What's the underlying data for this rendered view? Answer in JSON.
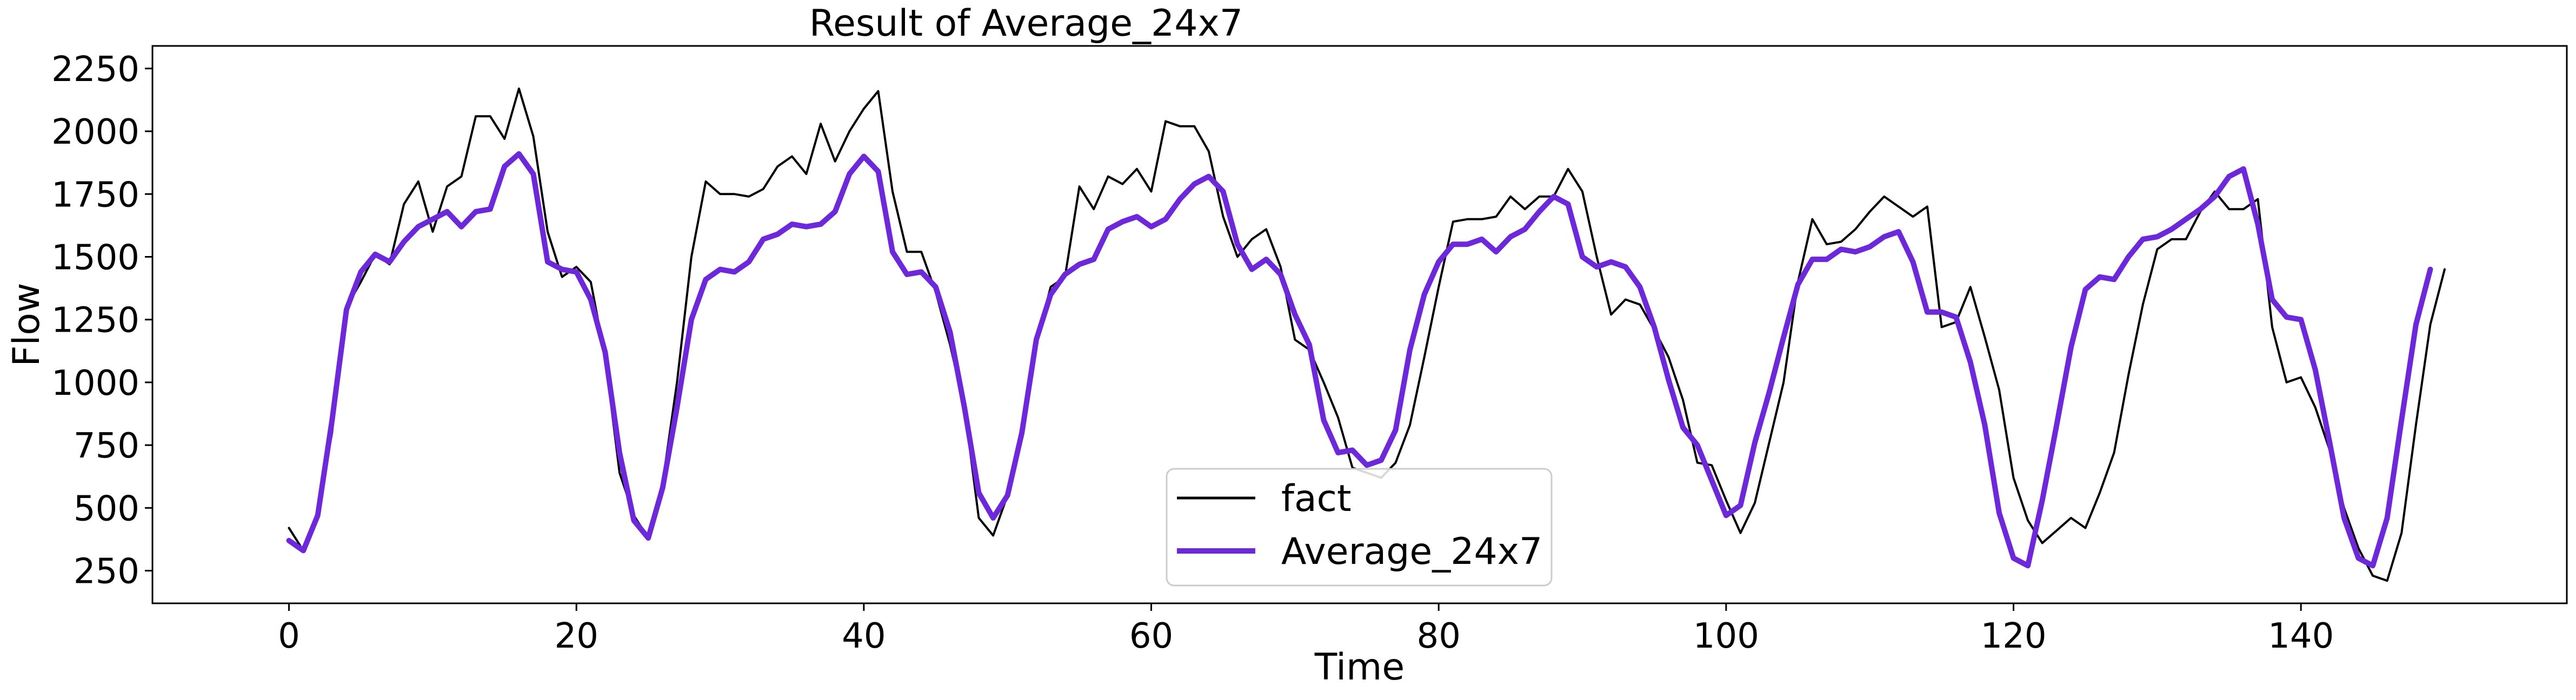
{
  "chart_data": {
    "type": "line",
    "title": "Result of Average_24x7",
    "xlabel": "Time",
    "ylabel": "Flow",
    "xlim": [
      -9.5,
      158.5
    ],
    "ylim": [
      120,
      2340
    ],
    "x_ticks": [
      0,
      20,
      40,
      60,
      80,
      100,
      120,
      140
    ],
    "y_ticks": [
      250,
      500,
      750,
      1000,
      1250,
      1500,
      1750,
      2000,
      2250
    ],
    "grid": false,
    "legend_position": "lower-center",
    "series": [
      {
        "name": "fact",
        "color": "#000000",
        "x_start": 0,
        "values": [
          420,
          330,
          480,
          800,
          1300,
          1400,
          1510,
          1470,
          1710,
          1800,
          1600,
          1780,
          1820,
          2060,
          2060,
          1970,
          2170,
          1980,
          1600,
          1420,
          1460,
          1400,
          1100,
          640,
          470,
          380,
          600,
          1000,
          1500,
          1800,
          1750,
          1750,
          1740,
          1770,
          1860,
          1900,
          1830,
          2030,
          1880,
          2000,
          2090,
          2160,
          1760,
          1520,
          1520,
          1360,
          1150,
          900,
          460,
          390,
          550,
          800,
          1160,
          1380,
          1420,
          1780,
          1690,
          1820,
          1790,
          1850,
          1760,
          2040,
          2020,
          2020,
          1920,
          1660,
          1500,
          1570,
          1610,
          1460,
          1170,
          1130,
          1000,
          860,
          660,
          640,
          620,
          680,
          830,
          1100,
          1380,
          1640,
          1650,
          1650,
          1660,
          1740,
          1690,
          1740,
          1740,
          1850,
          1760,
          1500,
          1270,
          1330,
          1310,
          1210,
          1100,
          930,
          680,
          670,
          530,
          400,
          520,
          760,
          1000,
          1400,
          1650,
          1550,
          1560,
          1610,
          1680,
          1740,
          1700,
          1660,
          1700,
          1220,
          1240,
          1380,
          1180,
          970,
          620,
          450,
          360,
          410,
          460,
          420,
          560,
          720,
          1030,
          1310,
          1530,
          1570,
          1570,
          1680,
          1760,
          1690,
          1690,
          1730,
          1220,
          1000,
          1020,
          900,
          730,
          500,
          340,
          230,
          210,
          400,
          830,
          1230,
          1450
        ]
      },
      {
        "name": "Average_24x7",
        "color": "#6d28d9",
        "x_start": 0,
        "values": [
          370,
          330,
          470,
          850,
          1290,
          1440,
          1510,
          1480,
          1560,
          1620,
          1650,
          1680,
          1620,
          1680,
          1690,
          1860,
          1910,
          1830,
          1480,
          1450,
          1440,
          1330,
          1120,
          720,
          450,
          380,
          580,
          900,
          1250,
          1410,
          1450,
          1440,
          1480,
          1570,
          1590,
          1630,
          1620,
          1630,
          1680,
          1830,
          1900,
          1840,
          1520,
          1430,
          1440,
          1380,
          1200,
          900,
          560,
          460,
          550,
          800,
          1170,
          1350,
          1430,
          1470,
          1490,
          1610,
          1640,
          1660,
          1620,
          1650,
          1730,
          1790,
          1820,
          1760,
          1550,
          1450,
          1490,
          1430,
          1270,
          1150,
          850,
          720,
          730,
          670,
          690,
          810,
          1130,
          1350,
          1480,
          1550,
          1550,
          1570,
          1520,
          1580,
          1610,
          1680,
          1740,
          1710,
          1500,
          1460,
          1480,
          1460,
          1380,
          1220,
          1010,
          820,
          750,
          610,
          470,
          510,
          760,
          960,
          1180,
          1390,
          1490,
          1490,
          1530,
          1520,
          1540,
          1580,
          1600,
          1480,
          1280,
          1280,
          1260,
          1080,
          830,
          480,
          300,
          270,
          530,
          830,
          1140,
          1370,
          1420,
          1410,
          1500,
          1570,
          1580,
          1610,
          1650,
          1690,
          1740,
          1820,
          1850,
          1630,
          1330,
          1260,
          1250,
          1050,
          760,
          460,
          300,
          270,
          460,
          850,
          1230,
          1450
        ]
      }
    ]
  }
}
